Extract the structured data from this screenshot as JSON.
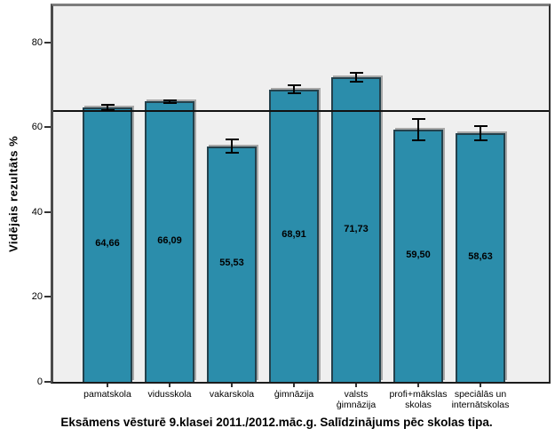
{
  "chart_data": {
    "type": "bar",
    "title": "Eksāmens vēsturē 9.klasei 2011./2012.māc.g. Salīdzinājums pēc skolas tipa.",
    "ylabel": "Vidējais rezultāts %",
    "xlabel": "",
    "categories": [
      "pamatskola",
      "vidusskola",
      "vakarskola",
      "ģimnāzija",
      "valsts\nģimnāzija",
      "profi+mākslas\nskolas",
      "speciālās un\ninternātskolas"
    ],
    "values": [
      64.66,
      66.09,
      55.53,
      68.91,
      71.73,
      59.5,
      58.63
    ],
    "value_labels": [
      "64,66",
      "66,09",
      "55,53",
      "68,91",
      "71,73",
      "59,50",
      "58,63"
    ],
    "error_bars": [
      0.8,
      0.5,
      1.8,
      1.1,
      1.2,
      2.7,
      1.9
    ],
    "reference_line": 63.8,
    "yticks": [
      0,
      20,
      40,
      60,
      80
    ],
    "ylim": [
      0,
      88.5
    ],
    "grid": false,
    "legend": "none",
    "colors": {
      "bar_fill": "#2b8dab",
      "bar_border": "#24414c",
      "plot_background": "#efefef",
      "reference_line": "#111111",
      "error_bar": "#000000",
      "text": "#000000"
    }
  }
}
